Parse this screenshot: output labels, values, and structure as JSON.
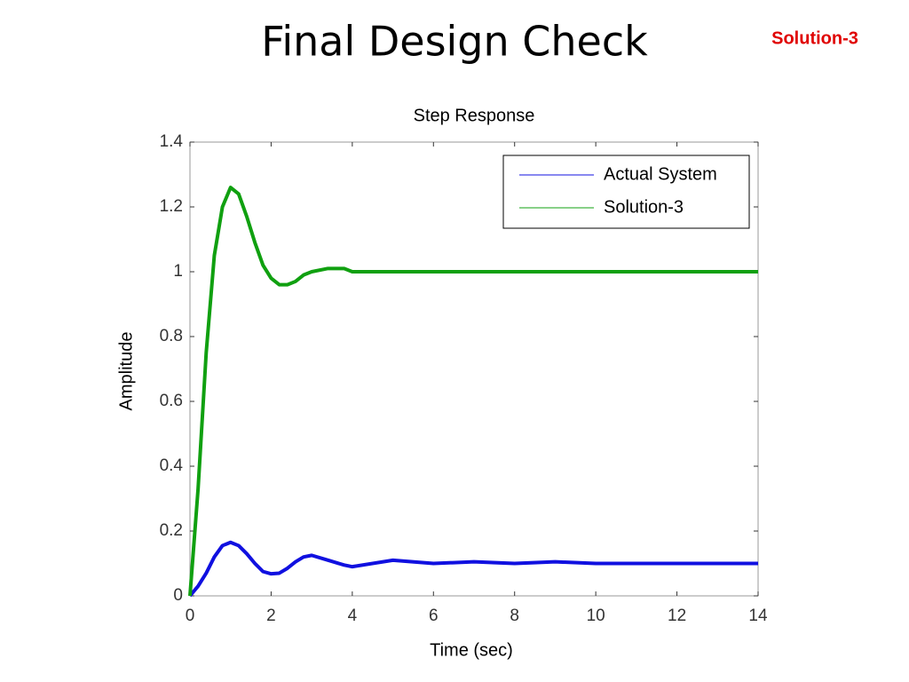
{
  "header": {
    "title": "Final Design Check",
    "tag": "Solution-3"
  },
  "chart_data": {
    "type": "line",
    "title": "Step Response",
    "xlabel": "Time (sec)",
    "ylabel": "Amplitude",
    "x": [
      0,
      0.2,
      0.4,
      0.6,
      0.8,
      1,
      1.2,
      1.4,
      1.6,
      1.8,
      2,
      2.2,
      2.4,
      2.6,
      2.8,
      3,
      3.4,
      3.8,
      4,
      5,
      6,
      7,
      8,
      9,
      10,
      11,
      12,
      13,
      14
    ],
    "series": [
      {
        "name": "Actual System",
        "color": "#1010e0",
        "values": [
          0,
          0.03,
          0.07,
          0.12,
          0.155,
          0.165,
          0.155,
          0.13,
          0.1,
          0.075,
          0.068,
          0.07,
          0.085,
          0.105,
          0.12,
          0.125,
          0.11,
          0.095,
          0.09,
          0.11,
          0.1,
          0.105,
          0.1,
          0.105,
          0.1,
          0.1,
          0.1,
          0.1,
          0.1
        ]
      },
      {
        "name": "Solution-3",
        "color": "#10a010",
        "values": [
          0,
          0.33,
          0.75,
          1.05,
          1.2,
          1.26,
          1.24,
          1.17,
          1.09,
          1.02,
          0.98,
          0.96,
          0.96,
          0.97,
          0.99,
          1,
          1.01,
          1.01,
          1,
          1,
          1,
          1,
          1,
          1,
          1,
          1,
          1,
          1,
          1
        ]
      }
    ],
    "xlim": [
      0,
      14
    ],
    "xticks": [
      0,
      2,
      4,
      6,
      8,
      10,
      12,
      14
    ],
    "ylim": [
      0,
      1.4
    ],
    "yticks": [
      0,
      0.2,
      0.4,
      0.6,
      0.8,
      1,
      1.2,
      1.4
    ],
    "legend": "upper right",
    "grid": false
  }
}
